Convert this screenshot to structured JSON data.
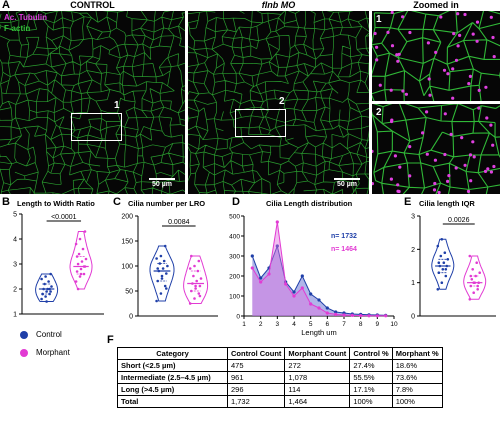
{
  "figure": {
    "panel_letters": {
      "A": "A",
      "B": "B",
      "C": "C",
      "D": "D",
      "E": "E",
      "F": "F"
    },
    "headers": {
      "control": "CONTROL",
      "morphant": "flnb MO",
      "zoomed": "Zoomed in"
    },
    "channel_labels": {
      "tubulin": "Ac. Tubulin",
      "actin": "F-actin"
    },
    "scale_bar": "50 µm",
    "roi_labels": {
      "one": "1",
      "two": "2"
    },
    "legend": {
      "control": "Control",
      "morphant": "Morphant"
    },
    "colors": {
      "control": "#1f3fa8",
      "morphant": "#e23bd3",
      "actin": "#33c23a",
      "tubulin": "#e040e0"
    }
  },
  "chart_data": [
    {
      "type": "violin",
      "panel": "B",
      "title": "Length to Width Ratio",
      "yticks": [
        1,
        2,
        3,
        4,
        5
      ],
      "ylim": [
        1,
        5
      ],
      "significance": "<0.0001",
      "series": [
        {
          "name": "Control",
          "values": [
            1.6,
            1.7,
            1.8,
            1.8,
            1.9,
            1.9,
            2.0,
            2.0,
            2.1,
            2.2,
            2.3,
            2.4,
            2.5,
            2.0,
            1.8,
            1.5,
            2.6
          ]
        },
        {
          "name": "Morphant",
          "values": [
            2.3,
            2.5,
            2.6,
            2.7,
            2.8,
            2.9,
            3.0,
            3.1,
            3.2,
            3.4,
            3.6,
            3.8,
            4.0,
            2.9,
            3.3,
            2.6,
            4.3,
            2.0
          ]
        }
      ]
    },
    {
      "type": "violin",
      "panel": "C",
      "title": "Cilia number per LRO",
      "yticks": [
        0,
        50,
        100,
        150,
        200
      ],
      "ylim": [
        0,
        200
      ],
      "significance": "0.0084",
      "series": [
        {
          "name": "Control",
          "values": [
            30,
            45,
            60,
            70,
            80,
            85,
            90,
            95,
            100,
            105,
            110,
            115,
            120,
            140,
            95,
            75,
            55
          ]
        },
        {
          "name": "Morphant",
          "values": [
            25,
            35,
            45,
            50,
            55,
            60,
            65,
            70,
            75,
            80,
            90,
            95,
            100,
            110,
            120,
            60,
            40
          ]
        }
      ]
    },
    {
      "type": "area",
      "panel": "D",
      "title": "Cilia Length distribution",
      "xlabel": "Length um",
      "xticks": [
        1,
        2,
        3,
        4,
        5,
        6,
        7,
        8,
        9,
        10
      ],
      "yticks": [
        0,
        100,
        200,
        300,
        400,
        500
      ],
      "xlim": [
        1,
        10
      ],
      "ylim": [
        0,
        500
      ],
      "series": [
        {
          "name": "Control",
          "label": "n= 1732",
          "x": [
            1.5,
            2,
            2.5,
            3,
            3.5,
            4,
            4.5,
            5,
            5.5,
            6,
            6.5,
            7,
            7.5,
            8,
            8.5,
            9,
            9.5
          ],
          "values": [
            300,
            190,
            240,
            350,
            170,
            120,
            200,
            110,
            80,
            40,
            20,
            15,
            10,
            8,
            6,
            5,
            3
          ]
        },
        {
          "name": "Morphant",
          "label": "n= 1464",
          "x": [
            1.5,
            2,
            2.5,
            3,
            3.5,
            4,
            4.5,
            5,
            5.5,
            6,
            6.5,
            7,
            7.5,
            8,
            8.5,
            9,
            9.5
          ],
          "values": [
            240,
            170,
            210,
            470,
            160,
            100,
            140,
            60,
            40,
            15,
            8,
            5,
            3,
            2,
            1,
            1,
            1
          ]
        }
      ]
    },
    {
      "type": "violin",
      "panel": "E",
      "title": "Cilia length IQR",
      "yticks": [
        0,
        1,
        2,
        3
      ],
      "ylim": [
        0,
        3
      ],
      "significance": "0.0026",
      "series": [
        {
          "name": "Control",
          "values": [
            0.8,
            1.0,
            1.2,
            1.3,
            1.4,
            1.5,
            1.5,
            1.6,
            1.7,
            1.8,
            1.9,
            2.1,
            2.3,
            1.4,
            1.6
          ]
        },
        {
          "name": "Morphant",
          "values": [
            0.5,
            0.7,
            0.8,
            0.9,
            1.0,
            1.0,
            1.1,
            1.2,
            1.3,
            1.4,
            1.6,
            1.8,
            1.0,
            0.9,
            1.2
          ]
        }
      ]
    },
    {
      "type": "table",
      "panel": "F",
      "columns": [
        "Category",
        "Control Count",
        "Morphant Count",
        "Control %",
        "Morphant %"
      ],
      "rows": [
        [
          "Short (<2.5 µm)",
          "475",
          "272",
          "27.4%",
          "18.6%"
        ],
        [
          "Intermediate (2.5–4.5 µm)",
          "961",
          "1,078",
          "55.5%",
          "73.6%"
        ],
        [
          "Long (>4.5 µm)",
          "296",
          "114",
          "17.1%",
          "7.8%"
        ],
        [
          "Total",
          "1,732",
          "1,464",
          "100%",
          "100%"
        ]
      ]
    }
  ]
}
